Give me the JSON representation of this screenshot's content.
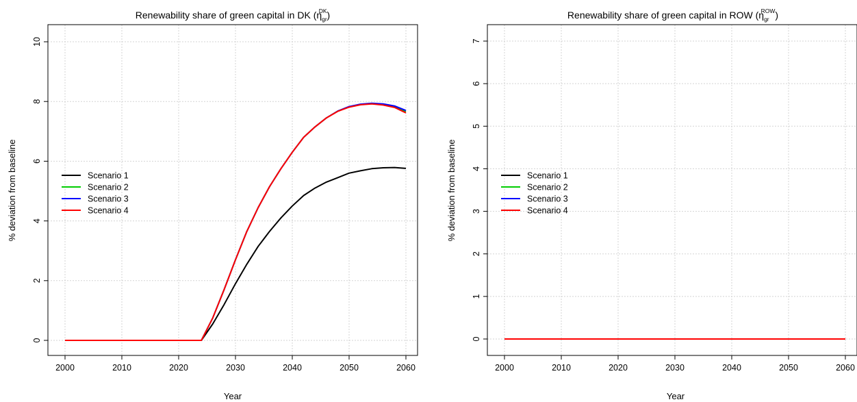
{
  "colors": {
    "scenario1": "#000000",
    "scenario2": "#00cc00",
    "scenario3": "#0000ff",
    "scenario4": "#ff0000",
    "grid": "#d3d3d3"
  },
  "chart_data": [
    {
      "type": "line",
      "title": "Renewability share of green capital in DK (",
      "title_symbol": "η",
      "title_sub": "gr",
      "title_sup": "DK",
      "title_close": ")",
      "xlabel": "Year",
      "ylabel": "% deviation from baseline",
      "xlim": [
        1997.5,
        2061.5
      ],
      "ylim": [
        -0.5,
        10.4
      ],
      "xticks": [
        2000,
        2010,
        2020,
        2030,
        2040,
        2050,
        2060
      ],
      "yticks": [
        0,
        2,
        4,
        6,
        8,
        10
      ],
      "grid": true,
      "legend_position": "left",
      "legend": [
        "Scenario 1",
        "Scenario 2",
        "Scenario 3",
        "Scenario 4"
      ],
      "x": [
        2000,
        2024,
        2026,
        2028,
        2030,
        2032,
        2034,
        2036,
        2038,
        2040,
        2042,
        2044,
        2046,
        2048,
        2050,
        2052,
        2054,
        2056,
        2058,
        2060
      ],
      "series": [
        {
          "name": "Scenario 1",
          "color": "#000000",
          "values": [
            0,
            0,
            0.55,
            1.2,
            1.9,
            2.55,
            3.15,
            3.65,
            4.1,
            4.5,
            4.85,
            5.1,
            5.3,
            5.45,
            5.6,
            5.68,
            5.75,
            5.78,
            5.79,
            5.76
          ]
        },
        {
          "name": "Scenario 2",
          "color": "#00cc00",
          "values": [
            0,
            0,
            0.75,
            1.7,
            2.7,
            3.65,
            4.45,
            5.15,
            5.75,
            6.3,
            6.8,
            7.15,
            7.45,
            7.68,
            7.82,
            7.9,
            7.93,
            7.9,
            7.82,
            7.66
          ]
        },
        {
          "name": "Scenario 3",
          "color": "#0000ff",
          "values": [
            0,
            0,
            0.75,
            1.7,
            2.7,
            3.65,
            4.45,
            5.15,
            5.75,
            6.3,
            6.8,
            7.15,
            7.45,
            7.68,
            7.83,
            7.91,
            7.94,
            7.92,
            7.85,
            7.7
          ]
        },
        {
          "name": "Scenario 4",
          "color": "#ff0000",
          "values": [
            0,
            0,
            0.75,
            1.7,
            2.7,
            3.65,
            4.45,
            5.15,
            5.75,
            6.3,
            6.8,
            7.15,
            7.45,
            7.67,
            7.81,
            7.89,
            7.92,
            7.88,
            7.8,
            7.62
          ]
        }
      ]
    },
    {
      "type": "line",
      "title": "Renewability share of green capital in ROW (",
      "title_symbol": "η",
      "title_sub": "gr",
      "title_sup": "ROW",
      "title_close": ")",
      "xlabel": "Year",
      "ylabel": "% deviation from baseline",
      "xlim": [
        1997.5,
        2061.5
      ],
      "ylim": [
        -0.35,
        7.2
      ],
      "xticks": [
        2000,
        2010,
        2020,
        2030,
        2040,
        2050,
        2060
      ],
      "yticks": [
        0,
        1,
        2,
        3,
        4,
        5,
        6,
        7
      ],
      "grid": true,
      "legend_position": "left",
      "legend": [
        "Scenario 1",
        "Scenario 2",
        "Scenario 3",
        "Scenario 4"
      ],
      "x": [
        2000,
        2060
      ],
      "series": [
        {
          "name": "Scenario 1",
          "color": "#000000",
          "values": [
            0,
            0
          ]
        },
        {
          "name": "Scenario 2",
          "color": "#00cc00",
          "values": [
            0,
            0
          ]
        },
        {
          "name": "Scenario 3",
          "color": "#0000ff",
          "values": [
            0,
            0
          ]
        },
        {
          "name": "Scenario 4",
          "color": "#ff0000",
          "values": [
            0,
            0
          ]
        }
      ]
    }
  ]
}
